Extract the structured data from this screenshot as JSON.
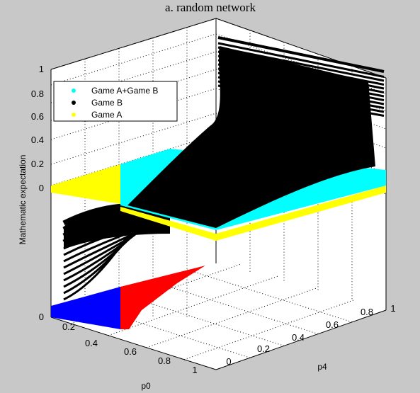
{
  "chart_data": {
    "type": "scatter",
    "title": "a. random network",
    "xlabel": "p0",
    "ylabel": "p4",
    "zlabel": "Mathematic expectation",
    "xlim": [
      0,
      1
    ],
    "ylim": [
      0,
      1
    ],
    "zlim": [
      -1,
      1
    ],
    "x_ticks": [
      "0.2",
      "0.4",
      "0.6",
      "0.8",
      "1"
    ],
    "y_ticks": [
      "0",
      "0.2",
      "0.4",
      "0.6",
      "0.8",
      "1"
    ],
    "z_ticks": [
      "0",
      "0",
      "0.2",
      "0.4",
      "0.6",
      "0.8",
      "1"
    ],
    "grid": true,
    "legend": {
      "position": "top-left",
      "entries": [
        {
          "label": "Game A+Game B",
          "color": "#00ffff"
        },
        {
          "label": "Game B",
          "color": "#000000"
        },
        {
          "label": "Game A",
          "color": "#ffff00"
        }
      ]
    },
    "series": [
      {
        "name": "Game A+Game B",
        "color": "#00ffff",
        "surface": "plane",
        "z_at_corners": {
          "p0_0_p4_0": -0.05,
          "p0_1_p4_0": -0.35,
          "p0_0_p4_1": 0.1,
          "p0_1_p4_1": 0.0
        }
      },
      {
        "name": "Game B",
        "color": "#000000",
        "surface": "curved",
        "z_range": [
          -0.9,
          1.0
        ]
      },
      {
        "name": "Game A",
        "color": "#ffff00",
        "surface": "plane",
        "z_at_corners": {
          "p0_0_p4_0": 0.0,
          "p0_1_p4_0": -0.3,
          "p0_0_p4_1": 0.05,
          "p0_1_p4_1": -0.05
        }
      }
    ],
    "floor_projection": [
      {
        "region": "p0 < 0.5",
        "color": "#0000ff"
      },
      {
        "region": "p0 > 0.5",
        "color": "#ff0000"
      }
    ]
  }
}
